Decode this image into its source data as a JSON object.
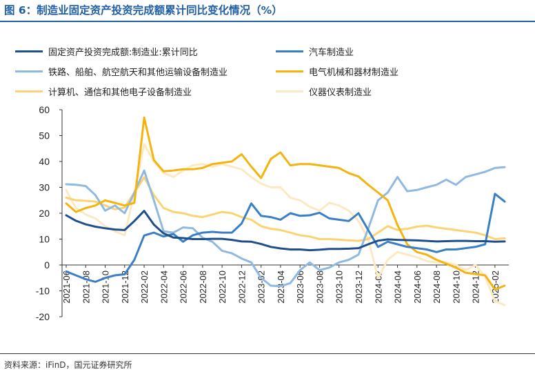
{
  "figure": {
    "title": "图 6：制造业固定资产投资完成额累计同比变化情况（%）",
    "source": "资料来源：iFinD，国元证券研究所"
  },
  "chart_data": {
    "type": "line",
    "ylim": [
      -20,
      60
    ],
    "yticks": [
      -20,
      -10,
      0,
      10,
      20,
      30,
      40,
      50,
      60
    ],
    "xtick_labels": [
      "2021-06",
      "2021-08",
      "2021-10",
      "2021-12",
      "2022-02",
      "2022-04",
      "2022-06",
      "2022-08",
      "2022-10",
      "2022-12",
      "2023-02",
      "2023-04",
      "2023-06",
      "2023-08",
      "2023-10",
      "2023-12",
      "2024-02",
      "2024-04",
      "2024-06",
      "2024-08",
      "2024-10",
      "2024-12",
      "2025-02"
    ],
    "x": [
      "2021-06",
      "2021-07",
      "2021-08",
      "2021-09",
      "2021-10",
      "2021-11",
      "2021-12",
      "2022-01",
      "2022-02",
      "2022-03",
      "2022-04",
      "2022-05",
      "2022-06",
      "2022-07",
      "2022-08",
      "2022-09",
      "2022-10",
      "2022-11",
      "2022-12",
      "2023-01",
      "2023-02",
      "2023-03",
      "2023-04",
      "2023-05",
      "2023-06",
      "2023-07",
      "2023-08",
      "2023-09",
      "2023-10",
      "2023-11",
      "2023-12",
      "2024-01",
      "2024-02",
      "2024-03",
      "2024-04",
      "2024-05",
      "2024-06",
      "2024-07",
      "2024-08",
      "2024-09",
      "2024-10",
      "2024-11",
      "2024-12",
      "2025-01",
      "2025-02",
      "2025-03"
    ],
    "grid": false,
    "legend_position": "top",
    "series": [
      {
        "name": "固定资产投资完成额:制造业:累计同比",
        "color": "#1f4e8c",
        "width": 3,
        "values": [
          19.2,
          17.1,
          15.7,
          14.8,
          14.2,
          13.7,
          13.5,
          17.0,
          20.9,
          15.6,
          12.2,
          10.6,
          10.4,
          10.0,
          10.0,
          10.1,
          10.1,
          9.7,
          9.1,
          9.0,
          8.1,
          7.0,
          6.4,
          6.0,
          6.0,
          5.7,
          5.9,
          6.2,
          6.2,
          6.3,
          6.5,
          8.0,
          9.4,
          9.9,
          9.7,
          9.6,
          9.5,
          9.3,
          9.1,
          9.2,
          9.3,
          9.3,
          9.2,
          9.2,
          9.0,
          9.1
        ]
      },
      {
        "name": "汽车制造业",
        "color": "#3a7ec6",
        "width": 3,
        "values": [
          -2.5,
          -4.0,
          -5.5,
          -6.5,
          -5.0,
          -4.0,
          -3.6,
          2.0,
          11.4,
          12.5,
          11.0,
          12.0,
          9.0,
          11.5,
          12.5,
          12.8,
          12.5,
          12.5,
          16.0,
          23.8,
          19.0,
          18.5,
          17.5,
          20.0,
          19.0,
          19.2,
          20.2,
          18.0,
          17.5,
          17.0,
          20.0,
          13.5,
          7.0,
          9.0,
          8.0,
          7.0,
          6.5,
          6.0,
          5.0,
          6.0,
          6.0,
          6.5,
          7.0,
          8.0,
          27.5,
          24.5
        ]
      },
      {
        "name": "铁路、船舶、航空航天和其他运输设备制造业",
        "color": "#8fb9e0",
        "width": 3,
        "values": [
          31.2,
          31.0,
          30.5,
          27.0,
          21.0,
          23.0,
          20.0,
          28.0,
          36.5,
          25.0,
          13.0,
          12.5,
          14.5,
          14.2,
          10.5,
          9.0,
          5.5,
          4.5,
          2.5,
          1.0,
          -5.0,
          -8.0,
          -8.2,
          -7.0,
          -2.0,
          1.0,
          -2.0,
          -1.0,
          1.0,
          2.0,
          4.0,
          14.0,
          25.0,
          28.0,
          34.0,
          28.5,
          29.0,
          30.0,
          31.0,
          33.0,
          31.0,
          34.0,
          35.0,
          36.0,
          37.5,
          37.8
        ]
      },
      {
        "name": "电气机械和器材制造业",
        "color": "#f5b30e",
        "width": 3,
        "values": [
          23.8,
          20.5,
          22.0,
          23.0,
          25.0,
          24.0,
          23.0,
          24.0,
          57.0,
          40.5,
          36.2,
          36.5,
          37.0,
          37.0,
          37.5,
          39.0,
          39.5,
          40.0,
          42.8,
          38.0,
          33.6,
          41.0,
          43.5,
          38.5,
          39.0,
          39.0,
          38.5,
          38.0,
          37.5,
          35.5,
          34.2,
          31.0,
          28.0,
          25.0,
          15.5,
          8.0,
          5.0,
          4.0,
          2.0,
          0.5,
          -1.0,
          -3.0,
          -3.5,
          -4.0,
          -9.5,
          -8.0
        ]
      },
      {
        "name": "计算机、通信和其他电子设备制造业",
        "color": "#fbd372",
        "width": 3,
        "values": [
          26.0,
          25.0,
          24.8,
          24.5,
          23.0,
          21.5,
          22.2,
          28.0,
          33.9,
          27.0,
          22.0,
          20.5,
          20.0,
          19.0,
          18.5,
          19.5,
          20.5,
          20.0,
          18.5,
          17.5,
          15.0,
          14.0,
          13.5,
          12.5,
          11.5,
          11.0,
          10.0,
          10.0,
          9.8,
          9.5,
          9.3,
          10.0,
          12.5,
          15.0,
          13.5,
          14.0,
          14.8,
          15.2,
          14.5,
          14.0,
          13.5,
          13.0,
          12.5,
          11.5,
          10.0,
          10.3
        ]
      },
      {
        "name": "仪器仪表制造业",
        "color": "#fce9c4",
        "width": 3,
        "values": [
          29.0,
          22.0,
          19.5,
          18.0,
          15.0,
          13.0,
          11.5,
          28.0,
          46.7,
          40.0,
          35.5,
          34.0,
          36.5,
          38.5,
          39.0,
          38.0,
          39.0,
          38.0,
          37.0,
          34.0,
          31.5,
          30.0,
          30.0,
          26.0,
          25.0,
          22.5,
          21.0,
          24.0,
          23.0,
          21.0,
          17.0,
          10.0,
          -5.0,
          2.0,
          5.0,
          4.0,
          3.0,
          1.5,
          1.0,
          1.0,
          0.0,
          -2.0,
          0.0,
          -4.5,
          -14.0,
          -15.5
        ]
      }
    ]
  }
}
